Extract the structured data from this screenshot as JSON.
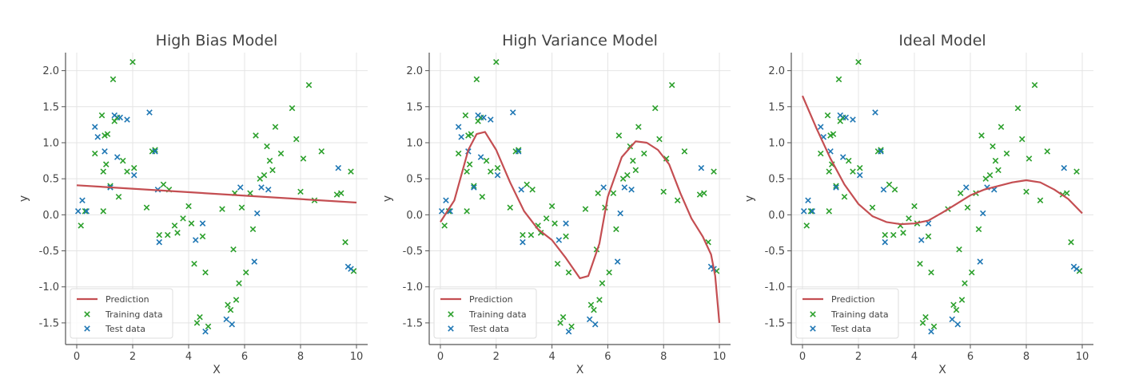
{
  "chart_data": [
    {
      "type": "scatter",
      "title": "High Bias Model",
      "xlabel": "X",
      "ylabel": "y",
      "xlim": [
        -0.4,
        10.4
      ],
      "ylim": [
        -1.8,
        2.25
      ],
      "xticks": [
        0,
        2,
        4,
        6,
        8,
        10
      ],
      "yticks": [
        -1.5,
        -1.0,
        -0.5,
        0.0,
        0.5,
        1.0,
        1.5,
        2.0
      ],
      "grid": true,
      "legend": "lower-left",
      "prediction": {
        "name": "Prediction",
        "x": [
          0,
          10
        ],
        "y": [
          0.41,
          0.17
        ]
      }
    },
    {
      "type": "scatter",
      "title": "High Variance Model",
      "xlabel": "X",
      "ylabel": "y",
      "xlim": [
        -0.4,
        10.4
      ],
      "ylim": [
        -1.8,
        2.25
      ],
      "xticks": [
        0,
        2,
        4,
        6,
        8,
        10
      ],
      "yticks": [
        -1.5,
        -1.0,
        -0.5,
        0.0,
        0.5,
        1.0,
        1.5,
        2.0
      ],
      "grid": true,
      "legend": "lower-left",
      "prediction": {
        "name": "Prediction",
        "x": [
          0.0,
          0.5,
          1.0,
          1.3,
          1.6,
          2.0,
          2.5,
          3.0,
          3.5,
          4.0,
          4.5,
          5.0,
          5.3,
          5.7,
          6.0,
          6.5,
          7.0,
          7.4,
          7.8,
          8.2,
          8.6,
          9.0,
          9.4,
          9.7,
          9.85,
          10.0
        ],
        "y": [
          -0.1,
          0.2,
          0.9,
          1.12,
          1.15,
          0.9,
          0.45,
          0.05,
          -0.2,
          -0.35,
          -0.6,
          -0.88,
          -0.85,
          -0.4,
          0.25,
          0.8,
          1.02,
          1.0,
          0.9,
          0.7,
          0.3,
          -0.05,
          -0.3,
          -0.55,
          -0.85,
          -1.5
        ]
      }
    },
    {
      "type": "scatter",
      "title": "Ideal Model",
      "xlabel": "X",
      "ylabel": "y",
      "xlim": [
        -0.4,
        10.4
      ],
      "ylim": [
        -1.8,
        2.25
      ],
      "xticks": [
        0,
        2,
        4,
        6,
        8,
        10
      ],
      "yticks": [
        -1.5,
        -1.0,
        -0.5,
        0.0,
        0.5,
        1.0,
        1.5,
        2.0
      ],
      "grid": true,
      "legend": "lower-left",
      "prediction": {
        "name": "Prediction",
        "x": [
          0.0,
          0.5,
          1.0,
          1.5,
          2.0,
          2.5,
          3.0,
          3.5,
          4.0,
          4.5,
          5.0,
          5.5,
          6.0,
          6.5,
          7.0,
          7.5,
          8.0,
          8.5,
          9.0,
          9.5,
          10.0
        ],
        "y": [
          1.65,
          1.2,
          0.78,
          0.42,
          0.15,
          -0.02,
          -0.1,
          -0.13,
          -0.12,
          -0.08,
          0.03,
          0.15,
          0.27,
          0.35,
          0.4,
          0.45,
          0.48,
          0.45,
          0.35,
          0.22,
          0.02
        ]
      }
    }
  ],
  "training_data": {
    "name": "Training data",
    "x": [
      0.15,
      0.3,
      0.65,
      0.9,
      0.95,
      1.0,
      1.05,
      1.1,
      1.2,
      1.3,
      1.35,
      1.45,
      1.5,
      1.65,
      2.0,
      2.05,
      2.5,
      2.7,
      2.95,
      3.1,
      3.25,
      3.5,
      3.6,
      3.8,
      4.0,
      4.1,
      4.2,
      4.3,
      4.4,
      4.6,
      4.7,
      5.2,
      5.4,
      5.6,
      5.7,
      5.8,
      5.9,
      6.05,
      6.3,
      6.4,
      6.55,
      6.7,
      6.8,
      6.9,
      7.0,
      7.1,
      7.3,
      7.7,
      7.85,
      8.0,
      8.1,
      8.3,
      8.5,
      8.75,
      9.3,
      9.45,
      9.6,
      9.8,
      9.9,
      0.95,
      1.8,
      2.8,
      3.3,
      4.5,
      5.5,
      5.65,
      6.2
    ],
    "y": [
      -0.15,
      0.05,
      0.85,
      1.38,
      0.6,
      1.1,
      0.7,
      1.12,
      0.4,
      1.88,
      1.3,
      1.35,
      0.25,
      0.75,
      2.12,
      0.65,
      0.1,
      0.88,
      -0.28,
      0.42,
      -0.28,
      -0.15,
      -0.25,
      -0.05,
      0.12,
      -0.12,
      -0.68,
      -1.5,
      -1.42,
      -0.8,
      -1.55,
      0.08,
      -1.25,
      -0.48,
      -1.18,
      -0.95,
      0.1,
      -0.8,
      -0.2,
      1.1,
      0.5,
      0.55,
      0.95,
      0.75,
      0.62,
      1.22,
      0.85,
      1.48,
      1.05,
      0.32,
      0.78,
      1.8,
      0.2,
      0.88,
      0.28,
      0.3,
      -0.38,
      0.6,
      -0.78,
      0.05,
      0.6,
      0.9,
      0.35,
      -0.3,
      -1.32,
      0.3,
      0.3
    ],
    "color": "#2ca02c"
  },
  "test_data": {
    "name": "Test data",
    "x": [
      0.05,
      0.2,
      0.35,
      0.65,
      0.75,
      1.0,
      1.2,
      1.35,
      1.55,
      1.8,
      2.05,
      2.6,
      2.8,
      2.95,
      4.25,
      4.5,
      4.6,
      5.35,
      5.55,
      5.85,
      6.35,
      6.45,
      6.6,
      6.85,
      9.35,
      9.7,
      9.8,
      1.45,
      2.9
    ],
    "y": [
      0.05,
      0.2,
      0.05,
      1.22,
      1.08,
      0.88,
      0.38,
      1.38,
      1.35,
      1.32,
      0.55,
      1.42,
      0.88,
      -0.38,
      -0.35,
      -0.12,
      -1.62,
      -1.45,
      -1.52,
      0.38,
      -0.65,
      0.02,
      0.38,
      0.35,
      0.65,
      -0.72,
      -0.75,
      0.8,
      0.35
    ],
    "color": "#1f77b4"
  },
  "prediction_color": "#c44e52"
}
